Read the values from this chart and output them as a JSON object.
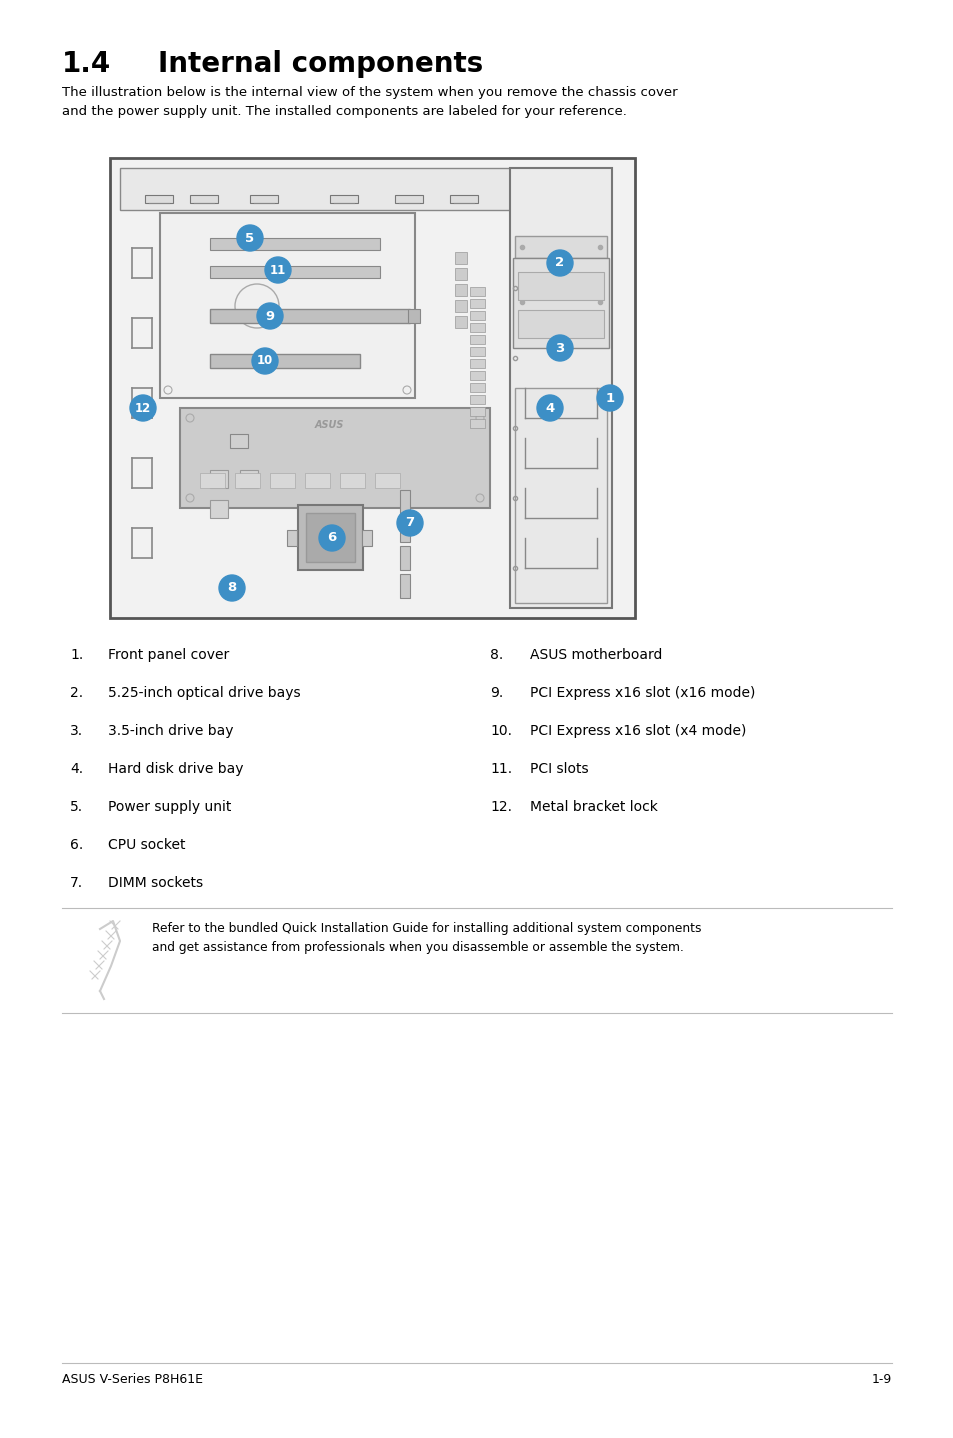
{
  "title_number": "1.4",
  "title_text": "Internal components",
  "description": "The illustration below is the internal view of the system when you remove the chassis cover\nand the power supply unit. The installed components are labeled for your reference.",
  "items_left": [
    {
      "num": "1.",
      "text": "Front panel cover"
    },
    {
      "num": "2.",
      "text": "5.25-inch optical drive bays"
    },
    {
      "num": "3.",
      "text": "3.5-inch drive bay"
    },
    {
      "num": "4.",
      "text": "Hard disk drive bay"
    },
    {
      "num": "5.",
      "text": "Power supply unit"
    },
    {
      "num": "6.",
      "text": "CPU socket"
    },
    {
      "num": "7.",
      "text": "DIMM sockets"
    }
  ],
  "items_right": [
    {
      "num": "8.",
      "text": "ASUS motherboard"
    },
    {
      "num": "9.",
      "text": "PCI Express x16 slot (x16 mode)"
    },
    {
      "num": "10.",
      "text": "PCI Express x16 slot (x4 mode)"
    },
    {
      "num": "11.",
      "text": "PCI slots"
    },
    {
      "num": "12.",
      "text": "Metal bracket lock"
    }
  ],
  "note_text": "Refer to the bundled Quick Installation Guide for installing additional system components\nand get assistance from professionals when you disassemble or assemble the system.",
  "footer_left": "ASUS V-Series P8H61E",
  "footer_right": "1-9",
  "bg_color": "#ffffff",
  "label_color": "#3d8fc6",
  "text_color": "#000000",
  "title_color": "#000000",
  "diagram_edge_color": "#555555",
  "diagram_fill": "#f5f5f5",
  "mb_fill": "#cccccc",
  "note_line_color": "#bbbbbb"
}
